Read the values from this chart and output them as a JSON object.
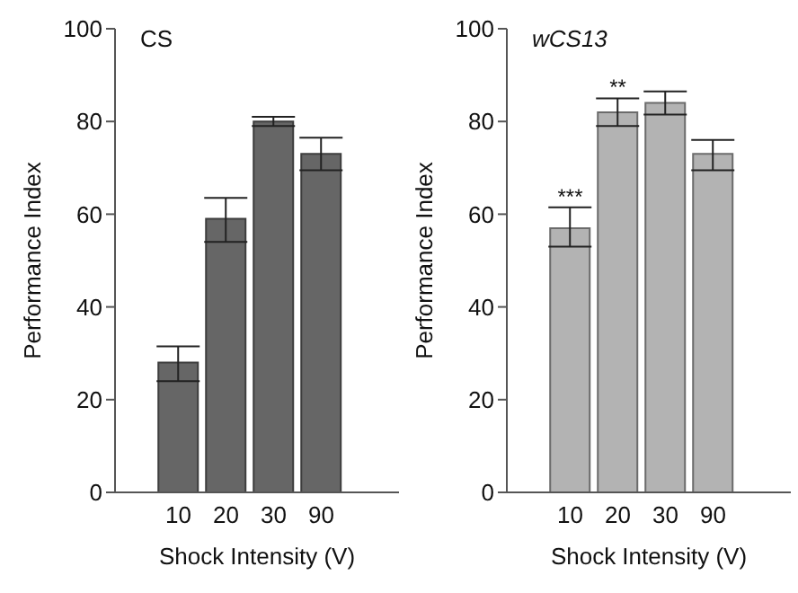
{
  "chart_data": [
    {
      "type": "bar",
      "title": "CS",
      "xlabel": "Shock Intensity (V)",
      "ylabel": "Performance Index",
      "categories": [
        "10",
        "20",
        "30",
        "90"
      ],
      "values": [
        28,
        59,
        80,
        73
      ],
      "color": "#666666",
      "errors": [
        [
          24,
          31.5
        ],
        [
          54,
          63.5
        ],
        [
          79,
          81
        ],
        [
          69.5,
          76.5
        ]
      ],
      "ylim": [
        0,
        100
      ],
      "yticks": [
        0,
        20,
        40,
        60,
        80,
        100
      ],
      "grid": false,
      "legend": false
    },
    {
      "type": "bar",
      "title": "wCS13",
      "xlabel": "Shock Intensity (V)",
      "ylabel": "Performance Index",
      "categories": [
        "10",
        "20",
        "30",
        "90"
      ],
      "values": [
        57,
        82,
        84,
        73
      ],
      "color": "#b3b3b3",
      "errors": [
        [
          53,
          61.5
        ],
        [
          79,
          85
        ],
        [
          81.5,
          86.5
        ],
        [
          69.5,
          76
        ]
      ],
      "ylim": [
        0,
        100
      ],
      "yticks": [
        0,
        20,
        40,
        60,
        80,
        100
      ],
      "grid": false,
      "legend": false,
      "annotations": [
        {
          "text": "***",
          "x": "10",
          "y": 61.5
        },
        {
          "text": "**",
          "x": "20",
          "y": 85
        }
      ]
    }
  ]
}
